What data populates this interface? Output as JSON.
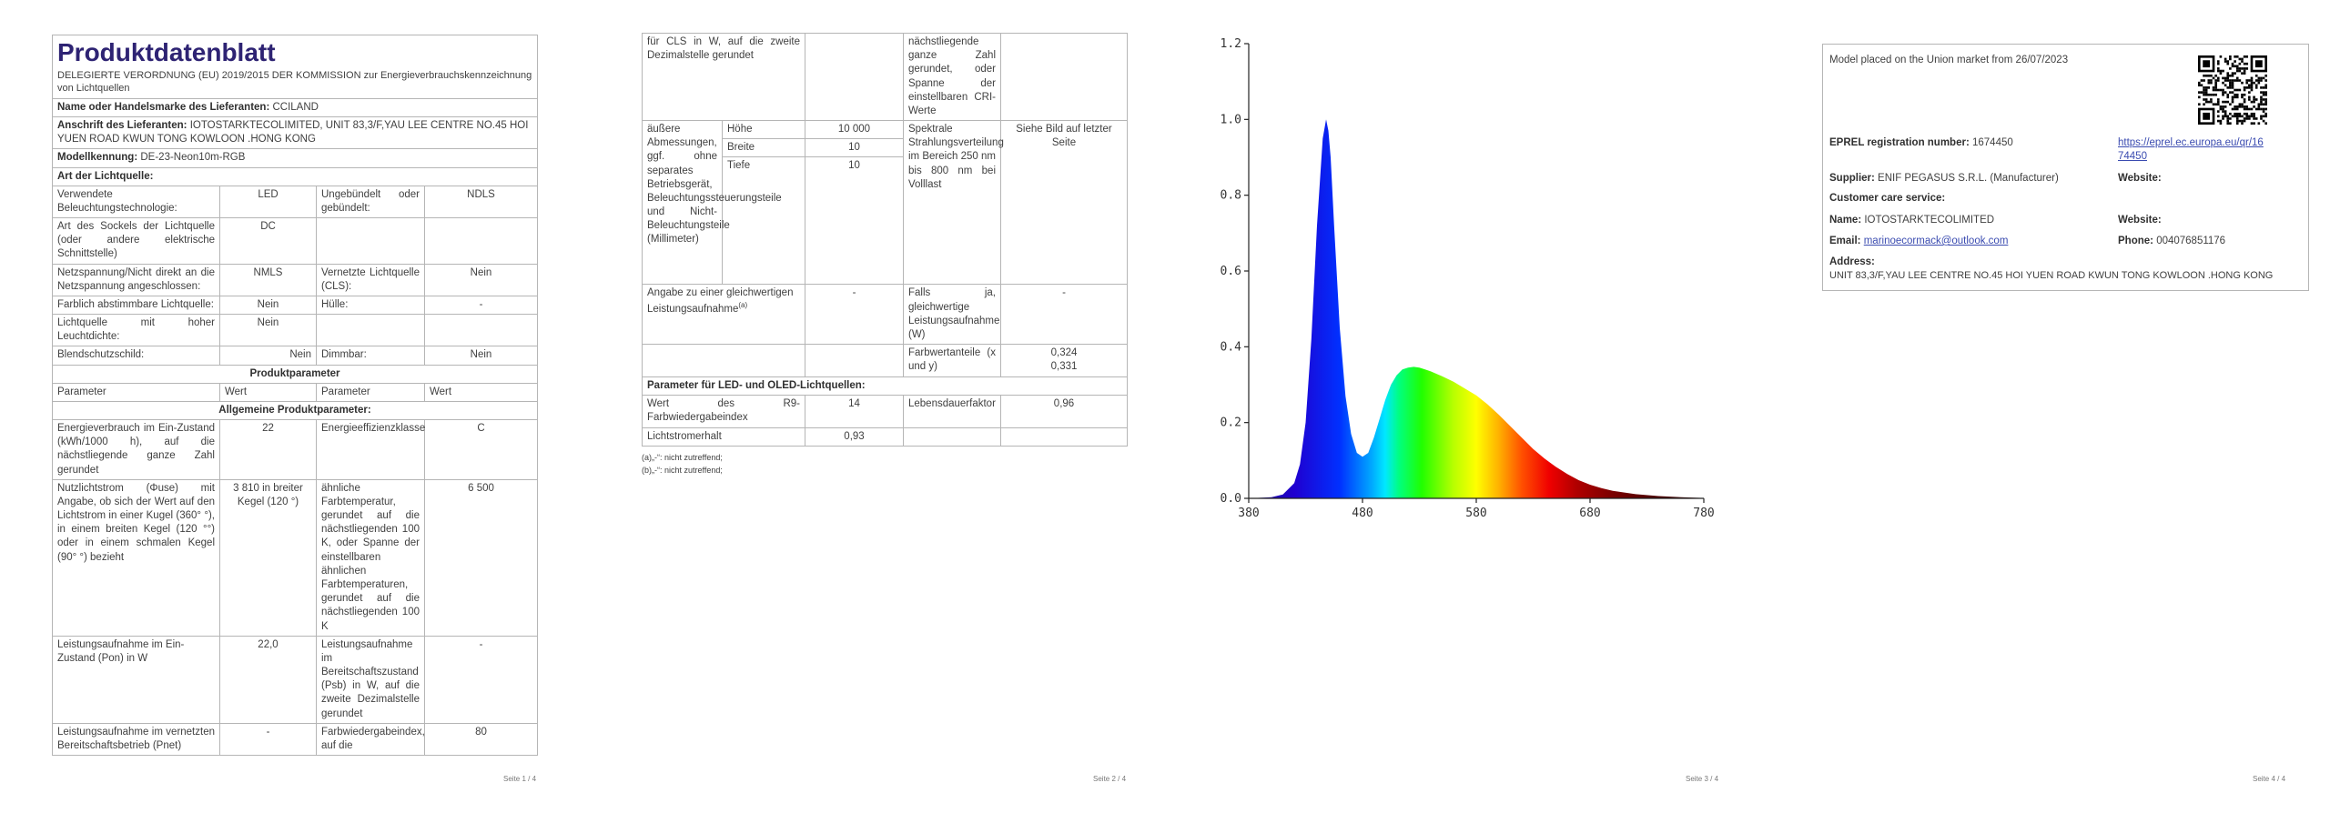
{
  "page1": {
    "title": "Produktdatenblatt",
    "subtitle": "DELEGIERTE VERORDNUNG (EU) 2019/2015 DER KOMMISSION zur Energieverbrauchskennzeichnung von Lichtquellen",
    "supplier_label": "Name oder Handelsmarke des Lieferanten:",
    "supplier_value": "CCILAND",
    "address_label": "Anschrift des Lieferanten:",
    "address_value": "IOTOSTARKTECOLIMITED, UNIT 83,3/F,YAU LEE CENTRE NO.45 HOI YUEN ROAD KWUN TONG KOWLOON .HONG KONG",
    "model_label": "Modellkennung:",
    "model_value": "DE-23-Neon10m-RGB",
    "type_header": "Art der Lichtquelle:",
    "type_rows": [
      {
        "p1": "Verwendete Beleuchtungstechnologie:",
        "v1": "LED",
        "p2": "Ungebündelt oder gebündelt:",
        "v2": "NDLS"
      },
      {
        "p1": "Art des Sockels der Lichtquelle (oder andere elektrische Schnittstelle)",
        "v1": "DC",
        "p2": "",
        "v2": ""
      },
      {
        "p1": "Netzspannung/Nicht direkt an die Netzspannung angeschlossen:",
        "v1": "NMLS",
        "p2": "Vernetzte Lichtquelle (CLS):",
        "v2": "Nein"
      },
      {
        "p1": "Farblich abstimmbare Lichtquelle:",
        "v1": "Nein",
        "p2": "Hülle:",
        "v2": "-"
      },
      {
        "p1": "Lichtquelle mit hoher Leuchtdichte:",
        "v1": "Nein",
        "p2": "",
        "v2": ""
      },
      {
        "p1": "Blendschutzschild:",
        "v1": "Nein",
        "p2": "Dimmbar:",
        "v2": "Nein"
      }
    ],
    "product_params_header": "Produktparameter",
    "col_param": "Parameter",
    "col_value": "Wert",
    "general_header": "Allgemeine Produktparameter:",
    "general_rows": [
      {
        "p1": "Energieverbrauch im Ein-Zustand (kWh/1000 h), auf die nächstliegende ganze Zahl gerundet",
        "v1": "22",
        "p2": "Energieeffizienzklasse",
        "v2": "C"
      },
      {
        "p1": "Nutzlichtstrom (Φuse) mit Angabe, ob sich der Wert auf den Lichtstrom in einer Kugel (360° °), in einem breiten Kegel (120 °°) oder in einem schmalen Kegel (90° °) bezieht",
        "v1": "3 810 in breiter Kegel (120 °)",
        "p2": "ähnliche Farbtemperatur, gerundet auf die nächstliegenden 100 K, oder Spanne der einstellbaren ähnlichen Farbtemperaturen, gerundet auf die nächstliegenden 100 K",
        "v2": "6 500"
      },
      {
        "p1": "Leistungsaufnahme im Ein-Zustand (Pon) in W",
        "v1": "22,0",
        "p2": "Leistungsaufnahme im Bereitschaftszustand (Psb) in W, auf die zweite Dezimalstelle gerundet",
        "v2": "-"
      },
      {
        "p1": "Leistungsaufnahme im vernetzten Bereitschaftsbetrieb (Pnet)",
        "v1": "-",
        "p2": "Farbwiedergabeindex, auf die",
        "v2": "80"
      }
    ],
    "footer": "Seite 1 / 4"
  },
  "page2": {
    "cont_rows": [
      {
        "p1": "für CLS in W, auf die zweite Dezimalstelle gerundet",
        "v1": "",
        "p2": "nächstliegende ganze Zahl gerundet, oder Spanne der einstellbaren CRI-Werte",
        "v2": ""
      }
    ],
    "dims_label": "äußere Abmessungen, ggf. ohne separates Betriebsgerät, Beleuchtungssteuerungsteile und Nicht-Beleuchtungsteile (Millimeter)",
    "dims": [
      {
        "name": "Höhe",
        "value": "10 000"
      },
      {
        "name": "Breite",
        "value": "10"
      },
      {
        "name": "Tiefe",
        "value": "10"
      }
    ],
    "spectral_label": "Spektrale Strahlungsverteilung im Bereich 250 nm bis 800 nm bei Volllast",
    "spectral_value": "Siehe Bild auf letzter Seite",
    "equiv_label": "Angabe zu einer gleichwertigen Leistungsaufnahme",
    "equiv_sup": "(a)",
    "equiv_value": "-",
    "equiv_p2": "Falls ja, gleichwertige Leistungsaufnahme (W)",
    "equiv_v2": "-",
    "chroma_label": "Farbwertanteile (x und y)",
    "chroma_x": "0,324",
    "chroma_y": "0,331",
    "led_header": "Parameter für LED- und OLED-Lichtquellen:",
    "led_rows": [
      {
        "p1": "Wert des R9-Farbwiedergabeindex",
        "v1": "14",
        "p2": "Lebensdauerfaktor",
        "v2": "0,96"
      },
      {
        "p1": "Lichtstromerhalt",
        "v1": "0,93",
        "p2": "",
        "v2": ""
      }
    ],
    "footnote_a": "(a)„-“: nicht zutreffend;",
    "footnote_b": "(b)„-“: nicht zutreffend;",
    "footer": "Seite 2 / 4"
  },
  "chart_data": {
    "type": "area",
    "title": "",
    "xlabel": "",
    "ylabel": "",
    "xlim": [
      380,
      780
    ],
    "ylim": [
      0,
      1.2
    ],
    "x_ticks": [
      380,
      480,
      580,
      680,
      780
    ],
    "y_ticks": [
      "0.0",
      "0.2",
      "0.4",
      "0.6",
      "0.8",
      "1.0",
      "1.2"
    ],
    "grid": false,
    "series": [
      {
        "x": [
          380,
          400,
          410,
          420,
          425,
          430,
          435,
          440,
          445,
          448,
          450,
          452,
          455,
          460,
          465,
          470,
          475,
          480,
          485,
          490,
          495,
          500,
          505,
          510,
          515,
          520,
          525,
          530,
          535,
          540,
          550,
          560,
          570,
          580,
          590,
          600,
          610,
          620,
          630,
          640,
          650,
          660,
          670,
          680,
          690,
          700,
          720,
          740,
          760,
          780
        ],
        "values": [
          0,
          0.003,
          0.01,
          0.04,
          0.09,
          0.2,
          0.42,
          0.72,
          0.95,
          1.0,
          0.97,
          0.9,
          0.72,
          0.45,
          0.27,
          0.17,
          0.12,
          0.11,
          0.12,
          0.16,
          0.21,
          0.26,
          0.3,
          0.325,
          0.34,
          0.345,
          0.347,
          0.345,
          0.34,
          0.335,
          0.322,
          0.308,
          0.29,
          0.272,
          0.248,
          0.22,
          0.19,
          0.16,
          0.13,
          0.105,
          0.083,
          0.064,
          0.048,
          0.036,
          0.027,
          0.02,
          0.011,
          0.006,
          0.003,
          0.001
        ]
      }
    ],
    "footer": "Seite 3 / 4"
  },
  "page4": {
    "placed": "Model placed on the Union market from 26/07/2023",
    "reg_label": "EPREL registration number:",
    "reg_value": "1674450",
    "link_line1": "https://eprel.ec.europa.eu/qr/16",
    "link_line2": "74450",
    "supplier_label": "Supplier:",
    "supplier_value": "ENIF PEGASUS S.R.L. (Manufacturer)",
    "website_label": "Website:",
    "care_label": "Customer care service:",
    "name_label": "Name:",
    "name_value": "IOTOSTARKTECOLIMITED",
    "website2_label": "Website:",
    "email_label": "Email:",
    "email_value": "marinoecormack@outlook.com",
    "phone_label": "Phone:",
    "phone_value": "004076851176",
    "address_label": "Address:",
    "address_value": "UNIT 83,3/F,YAU LEE CENTRE NO.45 HOI YUEN ROAD KWUN TONG KOWLOON .HONG KONG",
    "footer": "Seite 4 / 4"
  }
}
